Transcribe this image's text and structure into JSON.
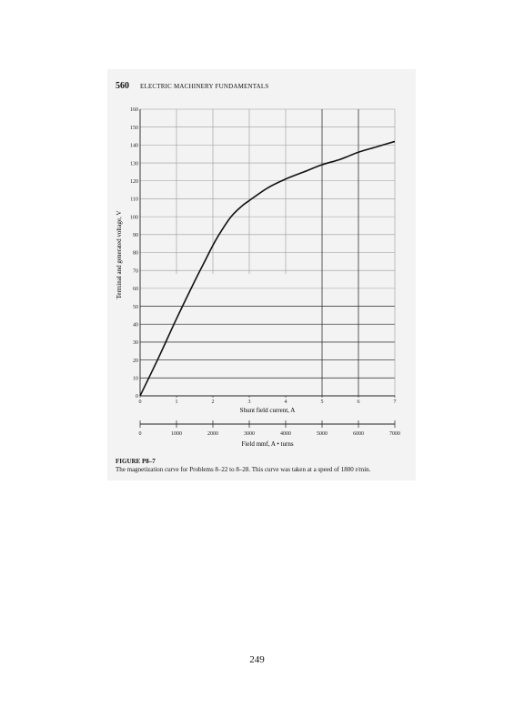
{
  "header": {
    "page_number": "560",
    "book_title": "ELECTRIC MACHINERY FUNDAMENTALS"
  },
  "chart_data": {
    "type": "line",
    "ylabel": "Terminal and generated voltage, V",
    "xlabel": "Shunt field current, A",
    "x2label": "Field mmf, A • turns",
    "xlim": [
      0,
      7
    ],
    "ylim": [
      0,
      160
    ],
    "x2lim": [
      0,
      7000
    ],
    "x_ticks": [
      "0",
      "1",
      "2",
      "3",
      "4",
      "5",
      "6",
      "7"
    ],
    "y_ticks": [
      "0",
      "10",
      "20",
      "30",
      "40",
      "50",
      "60",
      "70",
      "80",
      "90",
      "100",
      "110",
      "120",
      "130",
      "140",
      "150",
      "160"
    ],
    "x2_ticks": [
      "0",
      "1000",
      "2000",
      "3000",
      "4000",
      "5000",
      "6000",
      "7000"
    ],
    "grid": true,
    "series": [
      {
        "x": [
          0,
          0.5,
          1.0,
          1.5,
          1.8,
          2.0,
          2.2,
          2.5,
          2.8,
          3.0,
          3.5,
          4.0,
          4.5,
          5.0,
          5.5,
          6.0,
          6.5,
          7.0
        ],
        "y": [
          0,
          21,
          43,
          64,
          76,
          84,
          91,
          100,
          106,
          109,
          116,
          121,
          125,
          129,
          132,
          136,
          139,
          142
        ]
      }
    ]
  },
  "caption": {
    "title": "FIGURE P8–7",
    "text": "The magnetization curve for Problems 8–22 to 8–28. This curve was taken at a speed of 1800 r/min."
  },
  "footer": {
    "page_number": "249"
  }
}
